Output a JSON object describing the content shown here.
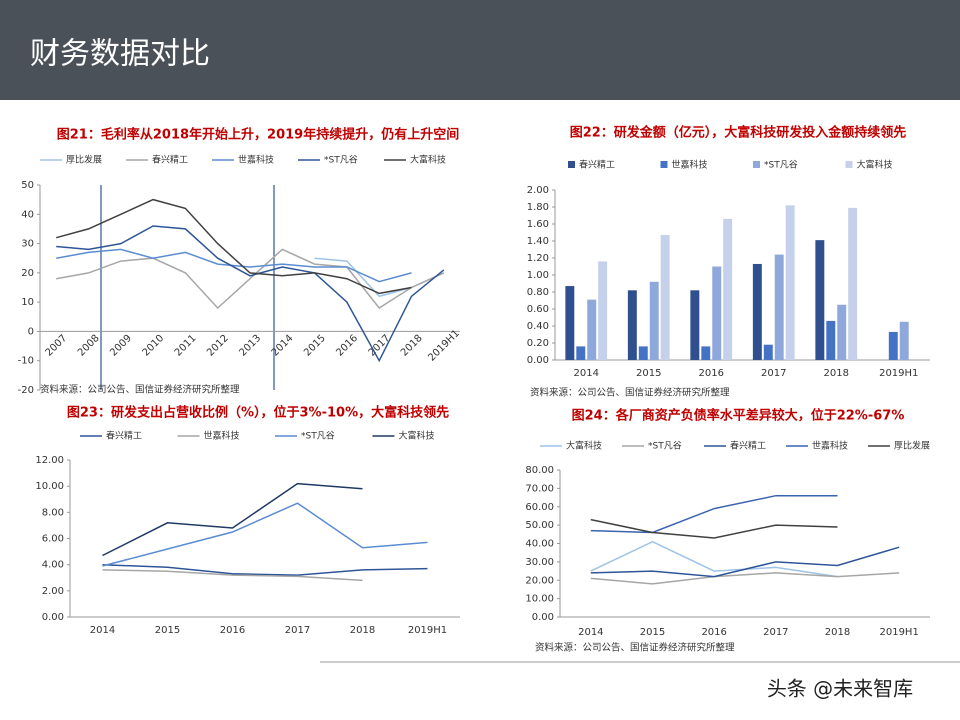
{
  "header": {
    "title": "财务数据对比"
  },
  "watermark": "头条 @未来智库",
  "chart_data": [
    {
      "type": "line",
      "title": "图21：毛利率从2018年开始上升，2019年持续提升，仍有上升空间",
      "categories": [
        "2007",
        "2008",
        "2009",
        "2010",
        "2011",
        "2012",
        "2013",
        "2014",
        "2015",
        "2016",
        "2017",
        "2018",
        "2019H1"
      ],
      "series": [
        {
          "name": "厚比发展",
          "color": "#9dc3e6",
          "values": [
            null,
            null,
            null,
            null,
            null,
            null,
            null,
            null,
            25,
            24,
            12,
            15,
            20
          ]
        },
        {
          "name": "春兴精工",
          "color": "#a6a6a6",
          "values": [
            18,
            20,
            24,
            25,
            20,
            8,
            18,
            28,
            23,
            22,
            8,
            15,
            20
          ]
        },
        {
          "name": "世嘉科技",
          "color": "#5b8bd0",
          "values": [
            25,
            27,
            28,
            25,
            27,
            23,
            22,
            23,
            22,
            22,
            17,
            20,
            null
          ]
        },
        {
          "name": "*ST凡谷",
          "color": "#2e5597",
          "values": [
            29,
            28,
            30,
            36,
            35,
            25,
            19,
            22,
            20,
            10,
            -10,
            12,
            21
          ]
        },
        {
          "name": "大富科技",
          "color": "#404040",
          "values": [
            32,
            35,
            40,
            45,
            42,
            30,
            20,
            19,
            20,
            18,
            13,
            15,
            null
          ]
        }
      ],
      "ylim": [
        -20,
        50
      ],
      "yticks": [
        -20,
        -10,
        0,
        10,
        20,
        30,
        40,
        50
      ],
      "note": "资料来源：公司公告、国信证券经济研究所整理"
    },
    {
      "type": "bar",
      "title": "图22：研发金额（亿元），大富科技研发投入金额持续领先",
      "categories": [
        "2014",
        "2015",
        "2016",
        "2017",
        "2018",
        "2019H1"
      ],
      "series": [
        {
          "name": "春兴精工",
          "color": "#2f4f8f",
          "values": [
            0.87,
            0.82,
            0.82,
            1.13,
            1.41,
            null
          ]
        },
        {
          "name": "世嘉科技",
          "color": "#4472c4",
          "values": [
            0.16,
            0.16,
            0.16,
            0.18,
            0.46,
            0.33
          ]
        },
        {
          "name": "*ST凡谷",
          "color": "#8fa8dc",
          "values": [
            0.71,
            0.92,
            1.1,
            1.24,
            0.65,
            0.45
          ]
        },
        {
          "name": "大富科技",
          "color": "#c5d0ea",
          "values": [
            1.16,
            1.47,
            1.66,
            1.82,
            1.79,
            null
          ]
        }
      ],
      "ylim": [
        0,
        2
      ],
      "yticks": [
        {
          "value": 0,
          "label": "0.00"
        },
        {
          "value": 0.2,
          "label": "0.20"
        },
        {
          "value": 0.4,
          "label": "0.40"
        },
        {
          "value": 0.6,
          "label": "0.60"
        },
        {
          "value": 0.8,
          "label": "0.80"
        },
        {
          "value": 1,
          "label": "1.00"
        },
        {
          "value": 1.2,
          "label": "1.20"
        },
        {
          "value": 1.4,
          "label": "1.40"
        },
        {
          "value": 1.6,
          "label": "1.60"
        },
        {
          "value": 1.8,
          "label": "1.80"
        },
        {
          "value": 2,
          "label": "2.00"
        }
      ],
      "note": "资料来源：公司公告、国信证券经济研究所整理"
    },
    {
      "type": "line",
      "title": "图23：研发支出占营收比例（%），位于3%-10%，大富科技领先",
      "categories": [
        "2014",
        "2015",
        "2016",
        "2017",
        "2018",
        "2019H1"
      ],
      "series": [
        {
          "name": "春兴精工",
          "color": "#2e5597",
          "values": [
            4.0,
            3.8,
            3.3,
            3.2,
            3.6,
            3.7
          ]
        },
        {
          "name": "世嘉科技",
          "color": "#a6a6a6",
          "values": [
            3.6,
            3.5,
            3.2,
            3.1,
            2.8,
            null
          ]
        },
        {
          "name": "*ST凡谷",
          "color": "#5b8bd0",
          "values": [
            3.9,
            5.2,
            6.5,
            8.7,
            5.3,
            5.7
          ]
        },
        {
          "name": "大富科技",
          "color": "#1f3864",
          "values": [
            4.7,
            7.2,
            6.8,
            10.2,
            9.8,
            null
          ]
        }
      ],
      "ylim": [
        0,
        12
      ],
      "yticks": [
        {
          "value": 0,
          "label": "0.00"
        },
        {
          "value": 2,
          "label": "2.00"
        },
        {
          "value": 4,
          "label": "4.00"
        },
        {
          "value": 6,
          "label": "6.00"
        },
        {
          "value": 8,
          "label": "8.00"
        },
        {
          "value": 10,
          "label": "10.00"
        },
        {
          "value": 12,
          "label": "12.00"
        }
      ]
    },
    {
      "type": "line",
      "title": "图24：各厂商资产负债率水平差异较大，位于22%-67%",
      "categories": [
        "2014",
        "2015",
        "2016",
        "2017",
        "2018",
        "2019H1"
      ],
      "series": [
        {
          "name": "大富科技",
          "color": "#9dc3e6",
          "values": [
            25,
            41,
            25,
            27,
            22,
            null
          ]
        },
        {
          "name": "*ST凡谷",
          "color": "#a6a6a6",
          "values": [
            21,
            18,
            22,
            24,
            22,
            24
          ]
        },
        {
          "name": "春兴精工",
          "color": "#2e5597",
          "values": [
            24,
            25,
            22,
            30,
            28,
            38
          ]
        },
        {
          "name": "世嘉科技",
          "color": "#3a63b0",
          "values": [
            47,
            46,
            59,
            66,
            66,
            null
          ]
        },
        {
          "name": "厚比发展",
          "color": "#404040",
          "values": [
            53,
            46,
            43,
            50,
            49,
            null
          ]
        }
      ],
      "ylim": [
        0,
        80
      ],
      "yticks": [
        {
          "value": 0,
          "label": "0.00"
        },
        {
          "value": 10,
          "label": "10.00"
        },
        {
          "value": 20,
          "label": "20.00"
        },
        {
          "value": 30,
          "label": "30.00"
        },
        {
          "value": 40,
          "label": "40.00"
        },
        {
          "value": 50,
          "label": "50.00"
        },
        {
          "value": 60,
          "label": "60.00"
        },
        {
          "value": 70,
          "label": "70.00"
        },
        {
          "value": 80,
          "label": "80.00"
        }
      ],
      "note": "资料来源：公司公告、国信证券经济研究所整理"
    }
  ]
}
